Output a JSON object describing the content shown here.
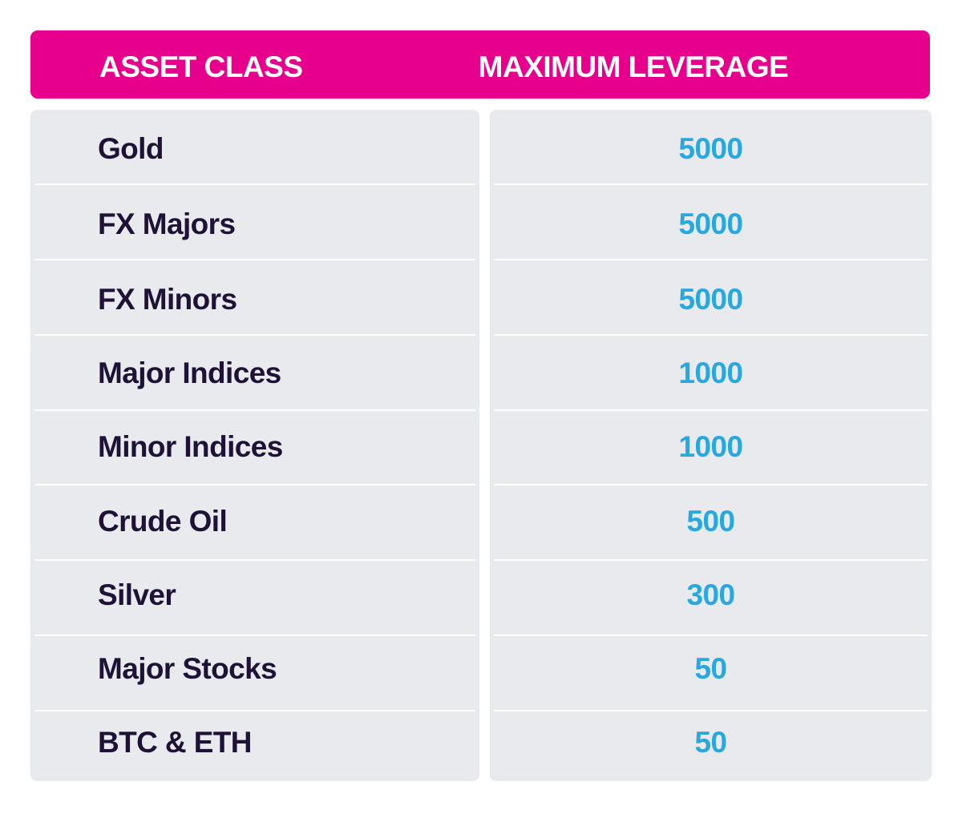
{
  "table": {
    "headers": [
      "ASSET CLASS",
      "MAXIMUM LEVERAGE"
    ],
    "rows": [
      {
        "asset": "Gold",
        "leverage": "5000"
      },
      {
        "asset": "FX Majors",
        "leverage": "5000"
      },
      {
        "asset": "FX Minors",
        "leverage": "5000"
      },
      {
        "asset": "Major Indices",
        "leverage": "1000"
      },
      {
        "asset": "Minor Indices",
        "leverage": "1000"
      },
      {
        "asset": "Crude Oil",
        "leverage": "500"
      },
      {
        "asset": "Silver",
        "leverage": "300"
      },
      {
        "asset": "Major Stocks",
        "leverage": "50"
      },
      {
        "asset": "BTC & ETH",
        "leverage": "50"
      }
    ]
  },
  "colors": {
    "header_bg": "#e6008c",
    "header_text": "#ffffff",
    "panel_bg": "#e9eaee",
    "asset_text": "#1e1236",
    "value_text": "#29a8df"
  },
  "chart_data": {
    "type": "table",
    "columns": [
      "ASSET CLASS",
      "MAXIMUM LEVERAGE"
    ],
    "categories": [
      "Gold",
      "FX Majors",
      "FX Minors",
      "Major Indices",
      "Minor Indices",
      "Crude Oil",
      "Silver",
      "Major Stocks",
      "BTC & ETH"
    ],
    "values": [
      5000,
      5000,
      5000,
      1000,
      1000,
      500,
      300,
      50,
      50
    ]
  }
}
